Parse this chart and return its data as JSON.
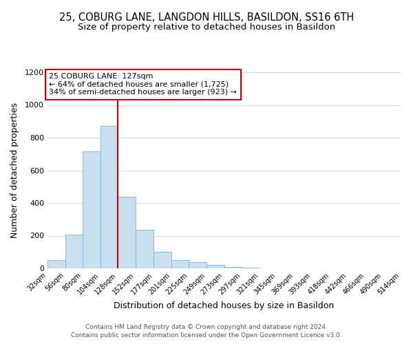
{
  "title": "25, COBURG LANE, LANGDON HILLS, BASILDON, SS16 6TH",
  "subtitle": "Size of property relative to detached houses in Basildon",
  "xlabel": "Distribution of detached houses by size in Basildon",
  "ylabel": "Number of detached properties",
  "footer_lines": [
    "Contains HM Land Registry data © Crown copyright and database right 2024.",
    "Contains public sector information licensed under the Open Government Licence v3.0."
  ],
  "bins": [
    32,
    56,
    80,
    104,
    128,
    152,
    177,
    201,
    225,
    249,
    273,
    297,
    321,
    345,
    369,
    393,
    418,
    442,
    466,
    490,
    514
  ],
  "bin_labels": [
    "32sqm",
    "56sqm",
    "80sqm",
    "104sqm",
    "128sqm",
    "152sqm",
    "177sqm",
    "201sqm",
    "225sqm",
    "249sqm",
    "273sqm",
    "297sqm",
    "321sqm",
    "345sqm",
    "369sqm",
    "393sqm",
    "418sqm",
    "442sqm",
    "466sqm",
    "490sqm",
    "514sqm"
  ],
  "bar_heights": [
    50,
    207,
    715,
    870,
    440,
    235,
    100,
    50,
    40,
    20,
    10,
    5,
    0,
    0,
    0,
    0,
    0,
    0,
    0,
    0
  ],
  "bar_color": "#c8dff0",
  "bar_edge_color": "#7ab3d4",
  "property_line_x": 128,
  "property_line_color": "#cc0000",
  "annotation_line1": "25 COBURG LANE: 127sqm",
  "annotation_line2": "← 64% of detached houses are smaller (1,725)",
  "annotation_line3": "34% of semi-detached houses are larger (923) →",
  "annotation_box_color": "#ffffff",
  "annotation_box_edge_color": "#cc0000",
  "ylim": [
    0,
    1200
  ],
  "xlim": [
    32,
    514
  ],
  "background_color": "#ffffff",
  "grid_color": "#ccd9e8",
  "title_fontsize": 10.5,
  "subtitle_fontsize": 9.5,
  "axis_label_fontsize": 9,
  "tick_fontsize": 7,
  "annotation_fontsize": 8,
  "footer_fontsize": 6.5,
  "yticks": [
    0,
    200,
    400,
    600,
    800,
    1000,
    1200
  ]
}
